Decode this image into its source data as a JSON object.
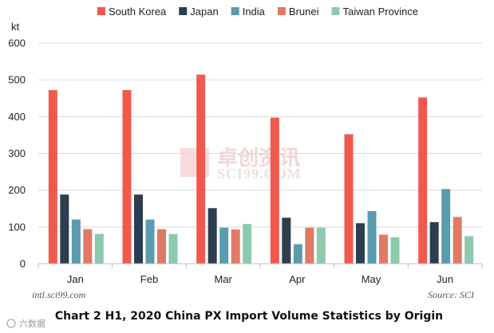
{
  "chart_data": {
    "type": "bar",
    "title": "Chart 2 H1, 2020 China PX Import Volume Statistics by Origin",
    "ylabel": "kt",
    "xlabel": "",
    "ylim": [
      0,
      600
    ],
    "yticks": [
      0,
      100,
      200,
      300,
      400,
      500,
      600
    ],
    "categories": [
      "Jan",
      "Feb",
      "Mar",
      "Apr",
      "May",
      "Jun"
    ],
    "series": [
      {
        "name": "South Korea",
        "color": "#f05a4d",
        "values": [
          472,
          472,
          514,
          397,
          352,
          452
        ]
      },
      {
        "name": "Japan",
        "color": "#2c3e50",
        "values": [
          188,
          188,
          151,
          125,
          110,
          113
        ]
      },
      {
        "name": "India",
        "color": "#5a9bad",
        "values": [
          120,
          120,
          98,
          53,
          143,
          203
        ]
      },
      {
        "name": "Brunei",
        "color": "#e07a64",
        "values": [
          94,
          94,
          93,
          98,
          79,
          127
        ]
      },
      {
        "name": "Taiwan Province",
        "color": "#8dc9ad",
        "values": [
          81,
          81,
          108,
          98,
          72,
          75
        ]
      }
    ],
    "legend_position": "top",
    "grid": true
  },
  "watermark": {
    "cn": "卓创资讯",
    "en": "SCI99.COM"
  },
  "credit_left": "intl.sci99.com",
  "credit_right": "Source: SCI",
  "corner_mark": "六数据"
}
